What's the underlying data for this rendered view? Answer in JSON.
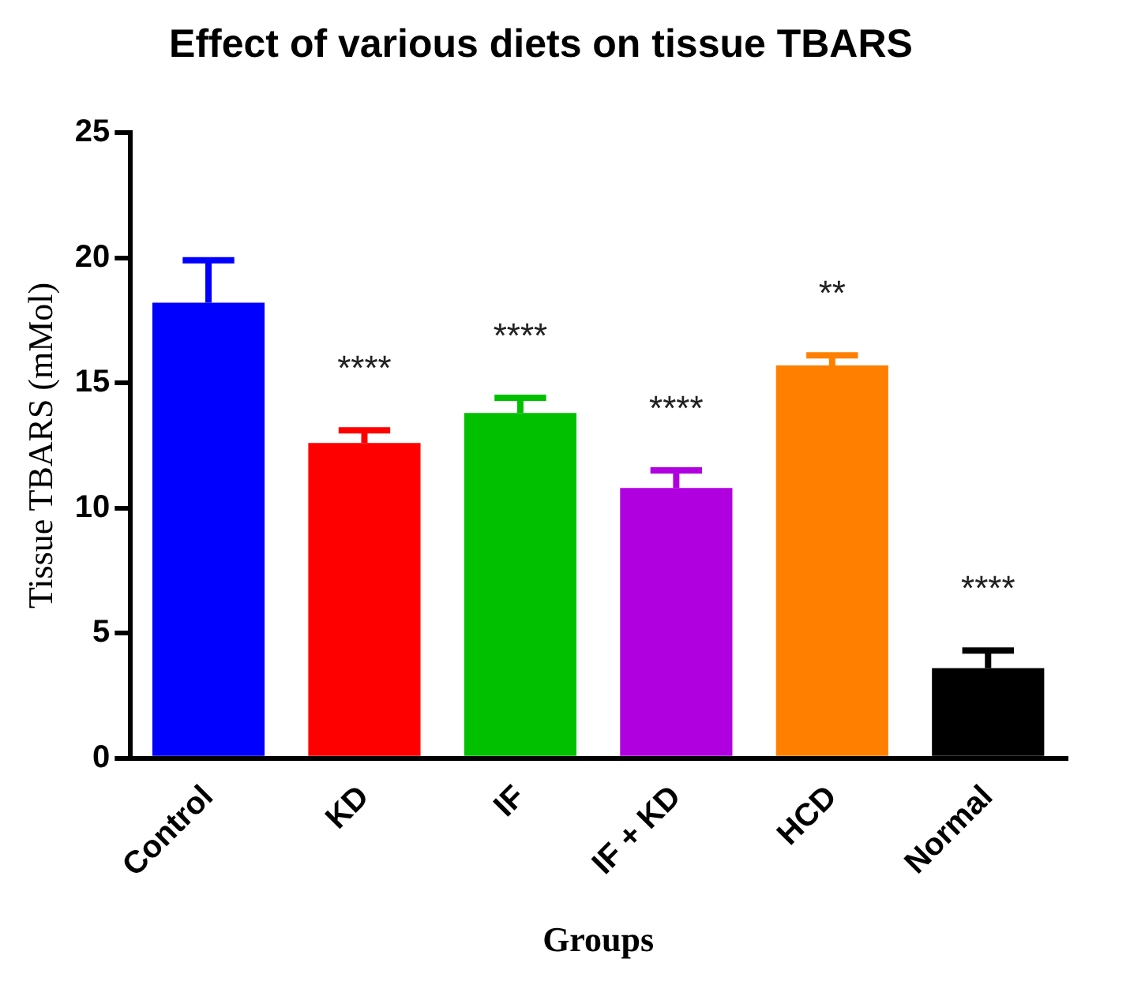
{
  "chart_data": {
    "type": "bar",
    "title": "Effect of various diets on tissue TBARS",
    "xlabel": "Groups",
    "ylabel": "Tissue TBARS (mMol)",
    "categories": [
      "Control",
      "KD",
      "IF",
      "IF + KD",
      "HCD",
      "Normal"
    ],
    "values": [
      18.2,
      12.6,
      13.8,
      10.8,
      15.7,
      3.6
    ],
    "colors": [
      "#0000ff",
      "#ff0000",
      "#00c000",
      "#b000e0",
      "#ff8000",
      "#000000"
    ],
    "errors": [
      [
        18.2,
        19.9
      ],
      [
        12.6,
        13.1
      ],
      [
        13.8,
        14.4
      ],
      [
        10.8,
        11.5
      ],
      [
        15.7,
        16.1
      ],
      [
        3.6,
        4.3
      ]
    ],
    "ylim": [
      0,
      25
    ],
    "yticks": [
      0,
      5,
      10,
      15,
      20,
      25
    ],
    "grid": false,
    "legend": false,
    "annotations": [
      {
        "text": "****",
        "x": "KD",
        "y": 13.1
      },
      {
        "text": "****",
        "x": "IF",
        "y": 14.4
      },
      {
        "text": "****",
        "x": "IF + KD",
        "y": 11.5
      },
      {
        "text": "**",
        "x": "HCD",
        "y": 16.1
      },
      {
        "text": "****",
        "x": "Normal",
        "y": 4.3
      }
    ]
  }
}
